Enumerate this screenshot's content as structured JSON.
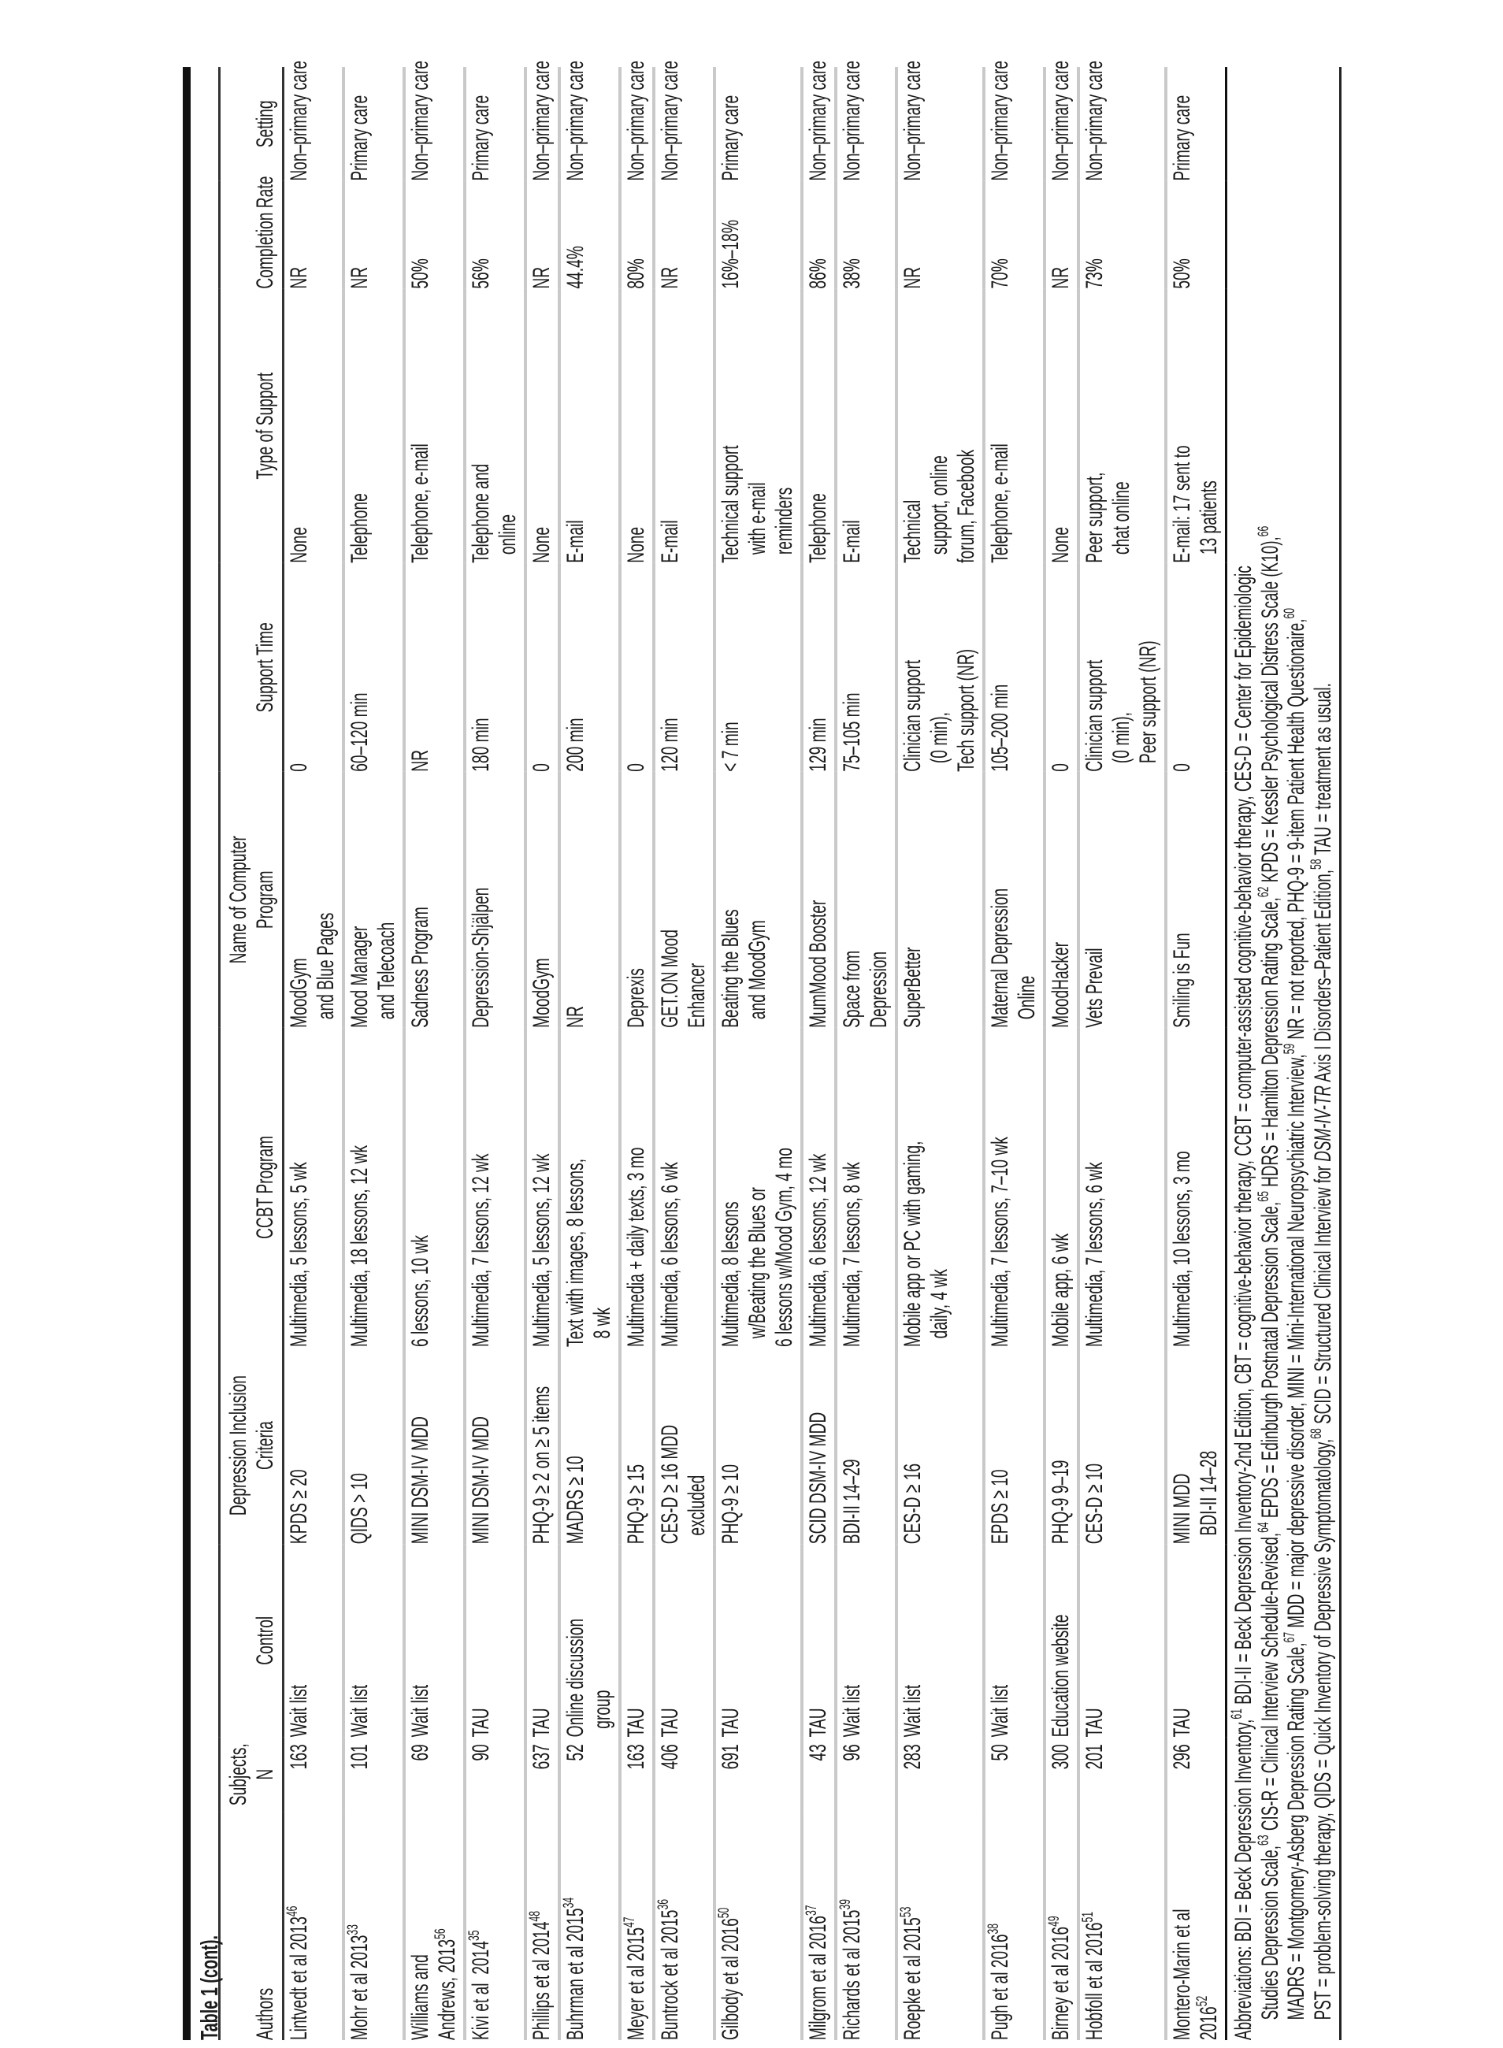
{
  "title": "Table 1 (cont).",
  "columns": [
    "Authors",
    "Subjects,\nN",
    "Control",
    "Depression Inclusion\nCriteria",
    "CCBT Program",
    "Name of Computer\nProgram",
    "Support Time",
    "Type of Support",
    "Completion Rate",
    "Setting"
  ],
  "rows": [
    {
      "author": "Lintvedt et al 2013",
      "ref": "46",
      "n": "163",
      "control": "Wait list",
      "criteria": "KPDS ≥ 20",
      "ccbt": "Multimedia, 5 lessons, 5 wk",
      "program": "MoodGym\n  and Blue Pages",
      "support_time": "0",
      "support_type": "None",
      "completion": "NR",
      "setting": "Non–primary care"
    },
    {
      "author": "Mohr et al 2013",
      "ref": "33",
      "n": "101",
      "control": "Wait list",
      "criteria": "QIDS > 10",
      "ccbt": "Multimedia, 18 lessons, 12 wk",
      "program": "Mood Manager\n  and Telecoach",
      "support_time": "60–120 min",
      "support_type": "Telephone",
      "completion": "NR",
      "setting": "Primary care"
    },
    {
      "author": "Williams and\nAndrews, 2013",
      "ref": "56",
      "n": "69",
      "control": "Wait list",
      "criteria": "MINI DSM-IV MDD",
      "ccbt": "6 lessons, 10 wk",
      "program": "Sadness Program",
      "support_time": "NR",
      "support_type": "Telephone, e-mail",
      "completion": "50%",
      "setting": "Non–primary care"
    },
    {
      "author": "Kivi et al  2014",
      "ref": "35",
      "n": "90",
      "control": "TAU",
      "criteria": "MINI DSM-IV MDD",
      "ccbt": "Multimedia, 7 lessons, 12 wk",
      "program": "Depression-Shjälpen",
      "support_time": "180 min",
      "support_type": "Telephone and\n  online",
      "completion": "56%",
      "setting": "Primary care"
    },
    {
      "author": "Phillips et al 2014",
      "ref": "48",
      "n": "637",
      "control": "TAU",
      "criteria": "PHQ-9 ≥ 2 on ≥ 5 items",
      "ccbt": "Multimedia, 5 lessons, 12 wk",
      "program": "MoodGym",
      "support_time": "0",
      "support_type": "None",
      "completion": "NR",
      "setting": "Non–primary care"
    },
    {
      "author": "Buhrman et al 2015",
      "ref": "34",
      "n": "52",
      "control": "Online discussion\n  group",
      "criteria": "MADRS ≥ 10",
      "ccbt": "Text with images, 8 lessons,\n  8 wk",
      "program": "NR",
      "support_time": "200 min",
      "support_type": "E-mail",
      "completion": "44.4%",
      "setting": "Non–primary care"
    },
    {
      "author": "Meyer et al 2015",
      "ref": "47",
      "n": "163",
      "control": "TAU",
      "criteria": "PHQ-9 ≥ 15",
      "ccbt": "Multimedia + daily texts, 3 mo",
      "program": "Deprexis",
      "support_time": "0",
      "support_type": "None",
      "completion": "80%",
      "setting": "Non–primary care"
    },
    {
      "author": "Buntrock et al 2015",
      "ref": "36",
      "n": "406",
      "control": "TAU",
      "criteria": "CES-D ≥ 16 MDD\n  excluded",
      "ccbt": "Multimedia, 6 lessons, 6 wk",
      "program": "GET.ON Mood\nEnhancer",
      "support_time": "120 min",
      "support_type": "E-mail",
      "completion": "NR",
      "setting": "Non–primary care"
    },
    {
      "author": "Gilbody et al 2016",
      "ref": "50",
      "n": "691",
      "control": "TAU",
      "criteria": "PHQ-9 ≥ 10",
      "ccbt": "Multimedia, 8 lessons\n  w/Beating the Blues or\n6 lessons w/Mood Gym, 4 mo",
      "program": "Beating the Blues\n  and MoodGym",
      "support_time": "< 7 min",
      "support_type": "Technical support\n  with e-mail\n  reminders",
      "completion": "16%–18%",
      "setting": "Primary care"
    },
    {
      "author": "Milgrom et al 2016",
      "ref": "37",
      "n": "43",
      "control": "TAU",
      "criteria": "SCID DSM-IV MDD",
      "ccbt": "Multimedia, 6 lessons, 12 wk",
      "program": "MumMood Booster",
      "support_time": "129 min",
      "support_type": "Telephone",
      "completion": "86%",
      "setting": "Non–primary care"
    },
    {
      "author": "Richards et al 2015",
      "ref": "39",
      "n": "96",
      "control": "Wait list",
      "criteria": "BDI-II 14–29",
      "ccbt": "Multimedia, 7 lessons, 8 wk",
      "program": "Space from\nDepression",
      "support_time": "75–105 min",
      "support_type": "E-mail",
      "completion": "38%",
      "setting": "Non–primary care"
    },
    {
      "author": "Roepke et al 2015",
      "ref": "53",
      "n": "283",
      "control": "Wait list",
      "criteria": "CES-D ≥ 16",
      "ccbt": "Mobile app or PC with gaming,\n  daily, 4 wk",
      "program": "SuperBetter",
      "support_time": "Clinician support\n  (0 min),\nTech support (NR)",
      "support_type": "Technical\n  support, online\nforum, Facebook",
      "completion": "NR",
      "setting": "Non–primary care"
    },
    {
      "author": "Pugh et al 2016",
      "ref": "38",
      "n": "50",
      "control": "Wait list",
      "criteria": "EPDS ≥ 10",
      "ccbt": "Multimedia, 7 lessons, 7–10 wk",
      "program": "Maternal Depression\n  Online",
      "support_time": "105–200 min",
      "support_type": "Telephone, e-mail",
      "completion": "70%",
      "setting": "Non–primary care"
    },
    {
      "author": "Birney et al 2016",
      "ref": "49",
      "n": "300",
      "control": "Education website",
      "criteria": "PHQ-9 9–19",
      "ccbt": "Mobile app, 6 wk",
      "program": "MoodHacker",
      "support_time": "0",
      "support_type": "None",
      "completion": "NR",
      "setting": "Non–primary care"
    },
    {
      "author": "Hobfoll et al 2016",
      "ref": "51",
      "n": "201",
      "control": "TAU",
      "criteria": "CES-D ≥ 10",
      "ccbt": "Multimedia, 7 lessons, 6 wk",
      "program": "Vets Prevail",
      "support_time": "Clinician support\n  (0 min),\n  Peer support (NR)",
      "support_type": "Peer support,\n  chat online",
      "completion": "73%",
      "setting": "Non–primary care"
    },
    {
      "author": "Montero-Marin et al\n2016",
      "ref": "52",
      "n": "296",
      "control": "TAU",
      "criteria": "MINI MDD\n  BDI-II 14–28",
      "ccbt": "Multimedia, 10 lessons, 3 mo",
      "program": "Smiling is Fun",
      "support_time": "0",
      "support_type": "E-mail: 17 sent to\n  13 patients",
      "completion": "50%",
      "setting": "Primary care"
    }
  ],
  "abbreviations": [
    [
      {
        "t": "Abbreviations: BDI = Beck Depression Inventory,"
      },
      {
        "t": "61",
        "sup": true
      },
      {
        "t": " BDI-II = Beck Depression Inventory-2nd Edition, CBT = cognitive-behavior therapy, CCBT = computer-assisted cognitive-behavior therapy, CES-D = Center for Epidemiologic"
      }
    ],
    [
      {
        "t": "Studies Depression Scale,"
      },
      {
        "t": "63",
        "sup": true
      },
      {
        "t": " CIS-R = Clinical Interview Schedule-Revised,"
      },
      {
        "t": "64",
        "sup": true
      },
      {
        "t": " EPDS = Edinburgh Postnatal Depression Scale,"
      },
      {
        "t": "65",
        "sup": true
      },
      {
        "t": " HDRS = Hamilton Depression Rating Scale,"
      },
      {
        "t": "62",
        "sup": true
      },
      {
        "t": " KPDS = Kessler Psychological Distress Scale (K10),"
      },
      {
        "t": "66",
        "sup": true
      }
    ],
    [
      {
        "t": "MADRS = Montgomery-Asberg Depression Rating Scale,"
      },
      {
        "t": "67",
        "sup": true
      },
      {
        "t": " MDD = major depressive disorder, MINI = Mini-International Neuropsychiatric Interview,"
      },
      {
        "t": "59",
        "sup": true
      },
      {
        "t": " NR = not reported, PHQ-9 = 9-item Patient Health Questionaire,"
      },
      {
        "t": "60",
        "sup": true
      }
    ],
    [
      {
        "t": "PST = problem-solving therapy, QIDS = Quick Inventory of Depressive Symptomatology,"
      },
      {
        "t": "68",
        "sup": true
      },
      {
        "t": " SCID = Structured Clinical Interview for "
      },
      {
        "t": "DSM-IV-TR",
        "i": true
      },
      {
        "t": " Axis I Disorders–Patient Edition,"
      },
      {
        "t": "58",
        "sup": true
      },
      {
        "t": " TAU = treatment as usual."
      }
    ]
  ]
}
